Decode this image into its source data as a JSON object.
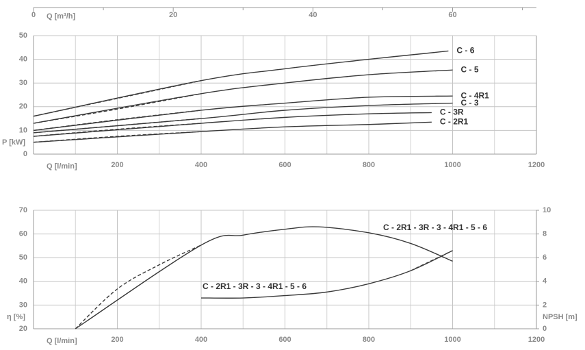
{
  "chart_data": [
    {
      "type": "line",
      "x_label": "Q [l/min]",
      "y_label": "P [kW]",
      "x2_label": "Q [m³/h]",
      "xlim": [
        0,
        1200
      ],
      "xticks": [
        200,
        400,
        600,
        800,
        1000,
        1200
      ],
      "x_grid": [
        100,
        300,
        500,
        700,
        900,
        1100
      ],
      "x2lim": [
        0,
        72
      ],
      "x2ticks": [
        0,
        20,
        40,
        60
      ],
      "x2_minor": [
        10,
        30,
        50,
        70
      ],
      "ylim": [
        0,
        50
      ],
      "yticks": [
        0,
        10,
        20,
        30,
        40,
        50
      ],
      "grid": true,
      "series": [
        {
          "name": "C - 6",
          "color": "#3a3a3a",
          "dashed": [
            0,
            400
          ],
          "x": [
            0,
            200,
            400,
            600,
            800,
            990
          ],
          "values": [
            16,
            23.5,
            31,
            36,
            40,
            43.5
          ]
        },
        {
          "name": "C - 5",
          "color": "#3a3a3a",
          "dashed": [
            0,
            400
          ],
          "x": [
            0,
            200,
            400,
            600,
            800,
            1000
          ],
          "values": [
            13,
            19,
            25.5,
            30,
            33.5,
            35.5
          ]
        },
        {
          "name": "C - 4R1",
          "color": "#3a3a3a",
          "dashed": [
            0,
            400
          ],
          "x": [
            0,
            200,
            400,
            600,
            800,
            1000
          ],
          "values": [
            10,
            14.5,
            18.5,
            21.5,
            24,
            24.5
          ]
        },
        {
          "name": "C - 3",
          "color": "#3a3a3a",
          "dashed": [
            0,
            400
          ],
          "x": [
            0,
            200,
            400,
            600,
            800,
            1000
          ],
          "values": [
            9,
            12,
            15,
            18.5,
            20.5,
            21.5
          ]
        },
        {
          "name": "C - 3R",
          "color": "#3a3a3a",
          "dashed": [
            0,
            400
          ],
          "x": [
            0,
            200,
            400,
            600,
            800,
            950
          ],
          "values": [
            7.5,
            10.5,
            13,
            15.5,
            17,
            17.5
          ]
        },
        {
          "name": "C - 2R1",
          "color": "#3a3a3a",
          "dashed": [
            0,
            400
          ],
          "x": [
            0,
            200,
            400,
            600,
            800,
            950
          ],
          "values": [
            5,
            7.5,
            9.5,
            11.5,
            12.5,
            13.5
          ]
        }
      ]
    },
    {
      "type": "line",
      "x_label": "Q [l/min]",
      "y_label": "η [%]",
      "y2_label": "NPSH [m]",
      "xlim": [
        0,
        1200
      ],
      "xticks": [
        200,
        400,
        600,
        800,
        1000,
        1200
      ],
      "x_grid": [
        100,
        300,
        500,
        700,
        900,
        1100
      ],
      "ylim": [
        20,
        70
      ],
      "yticks": [
        20,
        30,
        40,
        50,
        60,
        70
      ],
      "y2lim": [
        0,
        10
      ],
      "y2ticks": [
        0,
        2,
        4,
        6,
        8,
        10
      ],
      "grid": true,
      "series": [
        {
          "name": "C - 2R1 - 3R - 3 - 4R1 - 5 - 6",
          "color": "#3a3a3a",
          "dashed": [
            100,
            400
          ],
          "x": [
            100,
            200,
            300,
            400,
            500,
            600,
            680,
            800,
            900,
            1000
          ],
          "values": [
            20,
            36.8,
            47,
            55.3,
            59.5,
            62,
            63,
            60.5,
            56,
            48.5
          ]
        },
        {
          "name": "C - 2R1 - 3R - 3 - 4R1 - 5 - 6",
          "color": "#3a3a3a",
          "axis": "y2",
          "dashed": [
            900,
            1000
          ],
          "x": [
            400,
            500,
            600,
            700,
            800,
            900,
            1000
          ],
          "values": [
            2.6,
            2.6,
            2.8,
            3.1,
            3.8,
            4.9,
            6.6
          ]
        }
      ]
    }
  ]
}
